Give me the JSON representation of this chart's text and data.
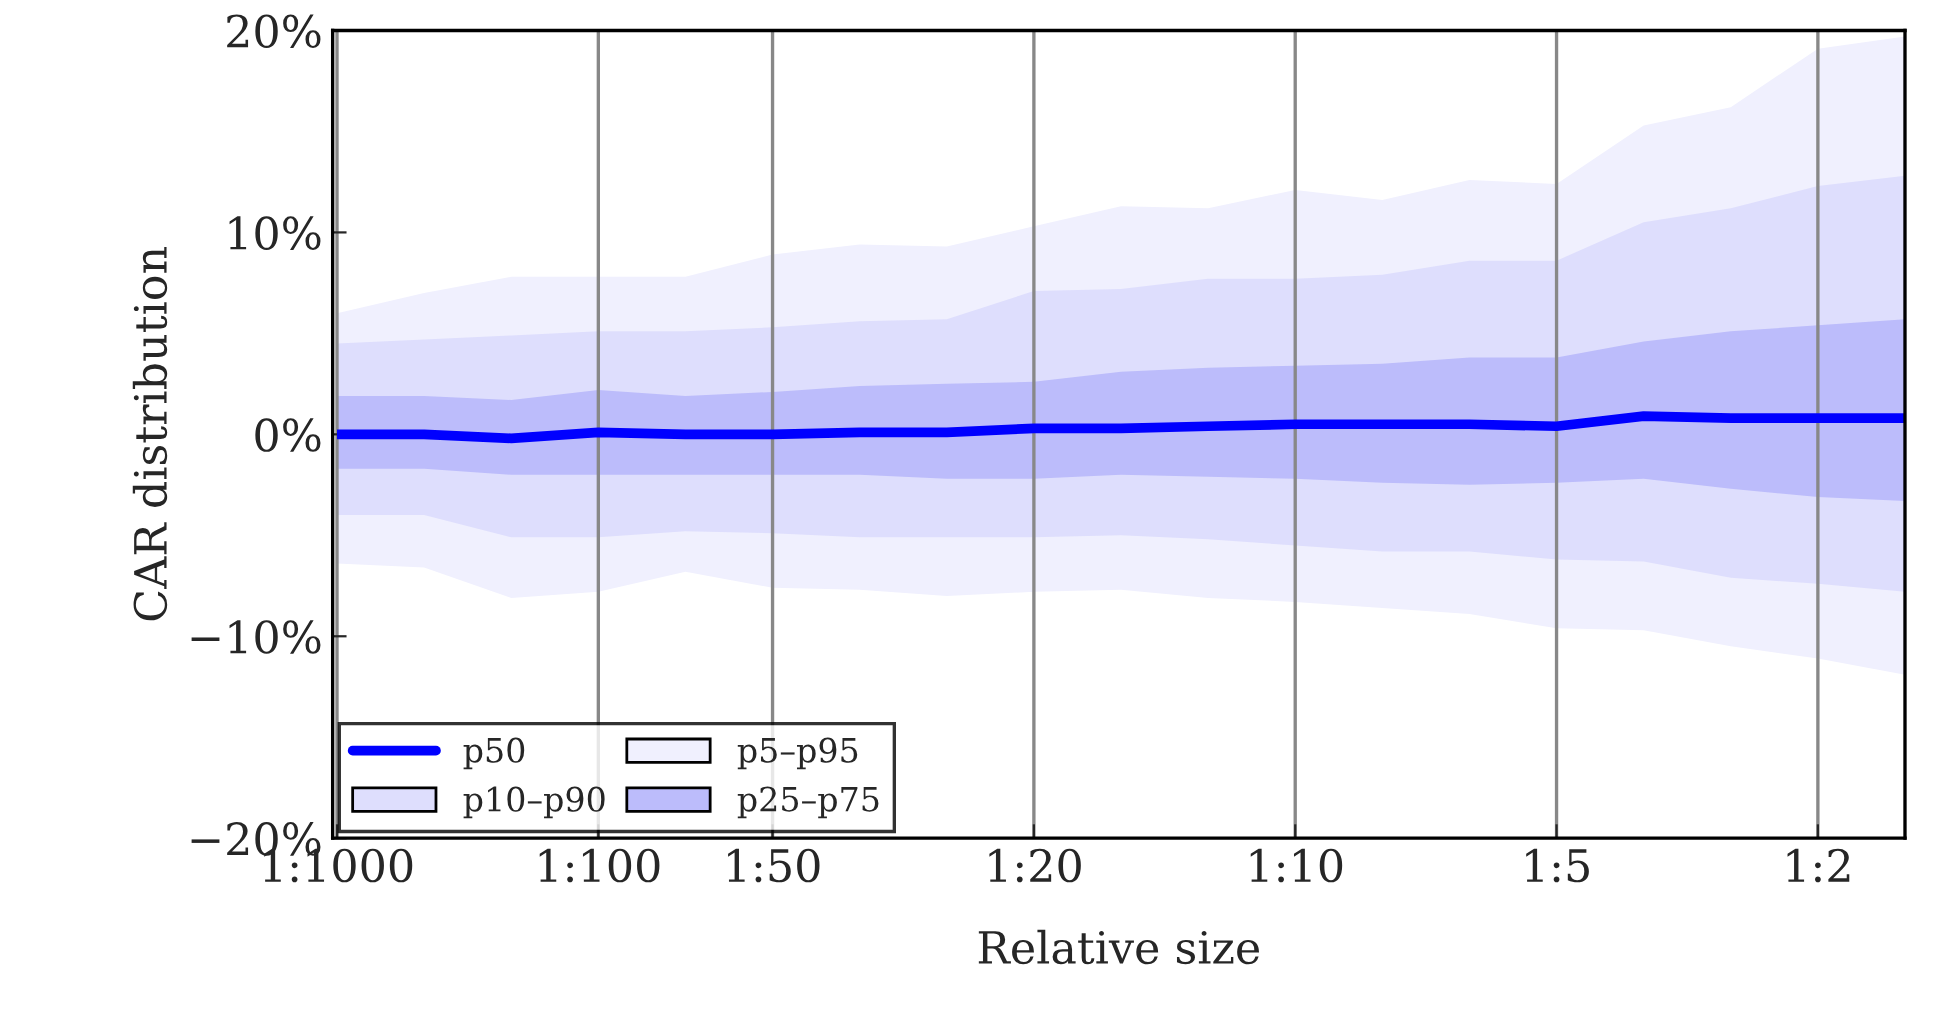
{
  "chart_data": {
    "type": "line",
    "xlabel": "Relative size",
    "ylabel": "CAR distribution",
    "categories": [
      "1:1000",
      null,
      null,
      "1:100",
      null,
      "1:50",
      null,
      null,
      "1:20",
      null,
      null,
      "1:10",
      null,
      null,
      "1:5",
      null,
      null,
      "1:2",
      null
    ],
    "ylim": [
      -20,
      20
    ],
    "yticks": [
      {
        "value": -20,
        "label": "−20%"
      },
      {
        "value": -10,
        "label": "−10%"
      },
      {
        "value": 0,
        "label": "0%"
      },
      {
        "value": 10,
        "label": "10%"
      },
      {
        "value": 20,
        "label": "20%"
      }
    ],
    "grid": "x",
    "legend": "bottom left",
    "series": [
      {
        "name": "p50",
        "color": "#0000ff",
        "values": [
          0,
          0,
          -0.2,
          0.1,
          0,
          0,
          0.1,
          0.1,
          0.3,
          0.3,
          0.4,
          0.5,
          0.5,
          0.5,
          0.4,
          0.9,
          0.8,
          0.8,
          0.8
        ]
      },
      {
        "name": "p5–p95",
        "color": "#f0f0fe",
        "values": [
          null,
          null,
          null,
          null,
          null,
          null,
          null,
          null,
          null,
          null,
          null,
          null,
          null,
          null,
          null,
          null,
          null,
          null,
          null
        ],
        "lower": [
          -6.4,
          -6.6,
          -8.1,
          -7.8,
          -6.8,
          -7.6,
          -7.7,
          -8.0,
          -7.8,
          -7.7,
          -8.1,
          -8.3,
          -8.6,
          -8.9,
          -9.6,
          -9.7,
          -10.5,
          -11.1,
          -11.9
        ],
        "upper": [
          6.0,
          7.0,
          7.8,
          7.8,
          7.8,
          8.9,
          9.4,
          9.3,
          10.3,
          11.3,
          11.2,
          12.1,
          11.6,
          12.6,
          12.4,
          15.3,
          16.2,
          19.1,
          19.7
        ]
      },
      {
        "name": "p10–p90",
        "color": "#dedefd",
        "values": [
          null,
          null,
          null,
          null,
          null,
          null,
          null,
          null,
          null,
          null,
          null,
          null,
          null,
          null,
          null,
          null,
          null,
          null,
          null
        ],
        "lower": [
          -4.0,
          -4.0,
          -5.1,
          -5.1,
          -4.8,
          -4.9,
          -5.1,
          -5.1,
          -5.1,
          -5.0,
          -5.2,
          -5.5,
          -5.8,
          -5.8,
          -6.2,
          -6.3,
          -7.1,
          -7.4,
          -7.8
        ],
        "upper": [
          4.5,
          4.7,
          4.9,
          5.1,
          5.1,
          5.3,
          5.6,
          5.7,
          7.1,
          7.2,
          7.7,
          7.7,
          7.9,
          8.6,
          8.6,
          10.5,
          11.2,
          12.3,
          12.8
        ]
      },
      {
        "name": "p25–p75",
        "color": "#bcbcfb",
        "values": [
          null,
          null,
          null,
          null,
          null,
          null,
          null,
          null,
          null,
          null,
          null,
          null,
          null,
          null,
          null,
          null,
          null,
          null,
          null
        ],
        "lower": [
          -1.7,
          -1.7,
          -2.0,
          -2.0,
          -2.0,
          -2.0,
          -2.0,
          -2.2,
          -2.2,
          -2.0,
          -2.1,
          -2.2,
          -2.4,
          -2.5,
          -2.4,
          -2.2,
          -2.7,
          -3.1,
          -3.3
        ],
        "upper": [
          1.9,
          1.9,
          1.7,
          2.2,
          1.9,
          2.1,
          2.4,
          2.5,
          2.6,
          3.1,
          3.3,
          3.4,
          3.5,
          3.8,
          3.8,
          4.6,
          5.1,
          5.4,
          5.7
        ]
      }
    ]
  }
}
